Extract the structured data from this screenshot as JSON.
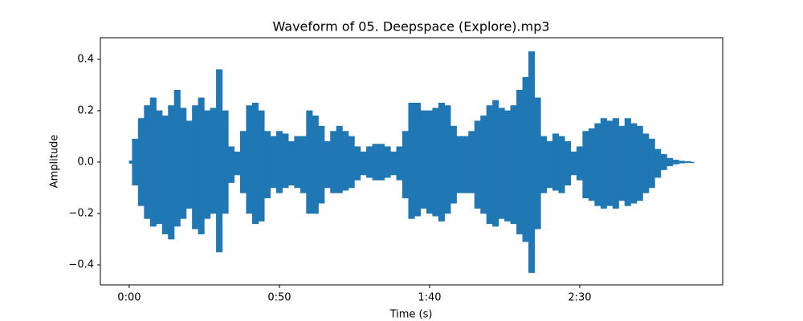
{
  "chart_data": {
    "type": "waveform",
    "title": "Waveform of 05. Deepspace (Explore).mp3",
    "x_label": "Time (s)",
    "y_label": "Amplitude",
    "color": "#1f77b4",
    "xlim": [
      -9.6,
      197.6
    ],
    "ylim": [
      -0.478,
      0.484
    ],
    "xticks": [
      {
        "value": 0,
        "label": "0:00"
      },
      {
        "value": 50,
        "label": "0:50"
      },
      {
        "value": 100,
        "label": "1:40"
      },
      {
        "value": 150,
        "label": "2:30"
      }
    ],
    "yticks": [
      {
        "value": -0.4,
        "label": "−0.4"
      },
      {
        "value": -0.2,
        "label": "−0.2"
      },
      {
        "value": 0,
        "label": "0.0"
      },
      0.2,
      0.4
    ],
    "x": [
      0,
      2,
      4,
      6,
      8,
      10,
      12,
      14,
      16,
      18,
      20,
      22,
      24,
      26,
      28,
      30,
      32,
      34,
      36,
      38,
      40,
      42,
      44,
      46,
      48,
      50,
      52,
      54,
      56,
      58,
      60,
      62,
      64,
      66,
      68,
      70,
      72,
      74,
      76,
      78,
      80,
      82,
      84,
      86,
      88,
      90,
      92,
      94,
      96,
      98,
      100,
      102,
      104,
      106,
      108,
      110,
      112,
      114,
      116,
      118,
      120,
      122,
      124,
      126,
      128,
      130,
      132,
      134,
      136,
      138,
      140,
      142,
      144,
      146,
      148,
      150,
      152,
      154,
      156,
      158,
      160,
      162,
      164,
      166,
      168,
      170,
      172,
      174,
      176,
      178,
      180,
      182,
      184,
      186,
      188
    ],
    "max": [
      0.005,
      0.09,
      0.17,
      0.22,
      0.25,
      0.2,
      0.18,
      0.22,
      0.28,
      0.21,
      0.16,
      0.22,
      0.25,
      0.2,
      0.21,
      0.36,
      0.2,
      0.06,
      0.04,
      0.12,
      0.22,
      0.23,
      0.2,
      0.12,
      0.1,
      0.12,
      0.11,
      0.08,
      0.1,
      0.1,
      0.2,
      0.18,
      0.14,
      0.08,
      0.12,
      0.14,
      0.12,
      0.1,
      0.06,
      0.04,
      0.06,
      0.07,
      0.07,
      0.06,
      0.04,
      0.06,
      0.12,
      0.23,
      0.23,
      0.2,
      0.2,
      0.21,
      0.23,
      0.22,
      0.14,
      0.1,
      0.1,
      0.12,
      0.16,
      0.18,
      0.22,
      0.24,
      0.21,
      0.2,
      0.22,
      0.28,
      0.33,
      0.43,
      0.25,
      0.1,
      0.08,
      0.11,
      0.1,
      0.08,
      0.04,
      0.06,
      0.12,
      0.13,
      0.15,
      0.17,
      0.16,
      0.17,
      0.14,
      0.17,
      0.15,
      0.14,
      0.11,
      0.09,
      0.05,
      0.03,
      0.015,
      0.008,
      0.004,
      0.002,
      0
    ],
    "min": [
      -0.005,
      -0.09,
      -0.17,
      -0.22,
      -0.25,
      -0.24,
      -0.28,
      -0.3,
      -0.25,
      -0.22,
      -0.18,
      -0.26,
      -0.28,
      -0.22,
      -0.2,
      -0.35,
      -0.2,
      -0.08,
      -0.05,
      -0.12,
      -0.2,
      -0.24,
      -0.23,
      -0.14,
      -0.1,
      -0.12,
      -0.1,
      -0.09,
      -0.1,
      -0.12,
      -0.2,
      -0.2,
      -0.16,
      -0.1,
      -0.12,
      -0.12,
      -0.11,
      -0.1,
      -0.07,
      -0.05,
      -0.06,
      -0.07,
      -0.07,
      -0.06,
      -0.05,
      -0.07,
      -0.14,
      -0.22,
      -0.21,
      -0.18,
      -0.2,
      -0.21,
      -0.23,
      -0.2,
      -0.16,
      -0.12,
      -0.12,
      -0.12,
      -0.18,
      -0.2,
      -0.24,
      -0.25,
      -0.22,
      -0.23,
      -0.24,
      -0.28,
      -0.31,
      -0.43,
      -0.26,
      -0.12,
      -0.1,
      -0.11,
      -0.12,
      -0.09,
      -0.05,
      -0.07,
      -0.14,
      -0.15,
      -0.17,
      -0.18,
      -0.17,
      -0.18,
      -0.15,
      -0.17,
      -0.16,
      -0.15,
      -0.12,
      -0.1,
      -0.06,
      -0.03,
      -0.015,
      -0.008,
      -0.004,
      -0.002,
      0
    ]
  }
}
